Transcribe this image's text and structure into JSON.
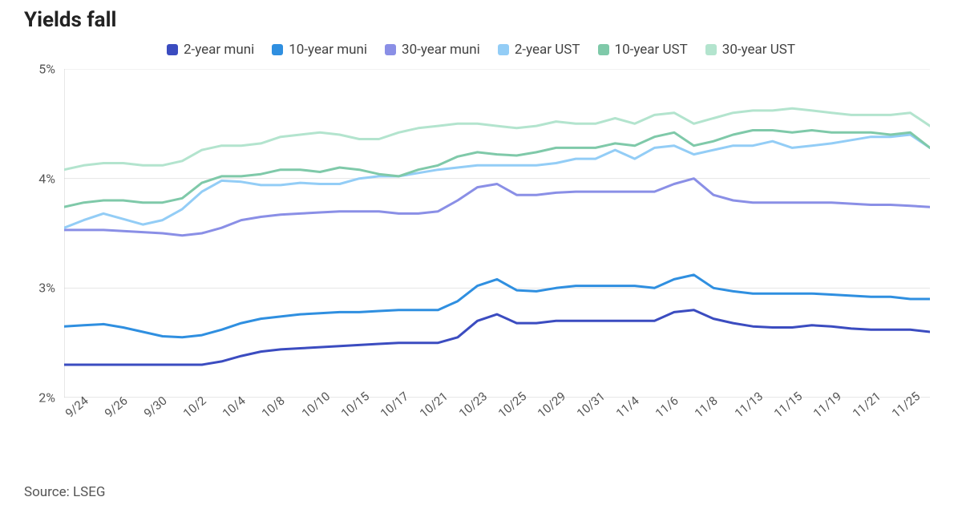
{
  "title": "Yields fall",
  "source": "Source: LSEG",
  "chart": {
    "type": "line",
    "background_color": "#ffffff",
    "grid_color": "#e5e5e5",
    "axis_color": "#cfcfcf",
    "title_fontsize": 26,
    "label_fontsize": 16,
    "line_width": 3,
    "y": {
      "min": 2.0,
      "max": 5.0,
      "ticks": [
        2,
        3,
        4,
        5
      ],
      "tick_labels": [
        "2%",
        "3%",
        "4%",
        "5%"
      ]
    },
    "x": {
      "count": 45,
      "tick_positions": [
        0,
        2,
        4,
        6,
        8,
        10,
        12,
        14,
        16,
        18,
        20,
        22,
        24,
        26,
        28,
        30,
        32,
        34,
        36,
        38,
        40,
        42,
        44
      ],
      "tick_labels": [
        "9/24",
        "9/26",
        "9/30",
        "10/2",
        "10/4",
        "10/8",
        "10/10",
        "10/15",
        "10/17",
        "10/21",
        "10/23",
        "10/25",
        "10/29",
        "10/31",
        "11/4",
        "11/6",
        "11/8",
        "11/13",
        "11/15",
        "11/19",
        "11/21",
        "11/25",
        ""
      ]
    },
    "series": [
      {
        "name": "2-year muni",
        "color": "#3b4cc0",
        "values": [
          2.3,
          2.3,
          2.3,
          2.3,
          2.3,
          2.3,
          2.3,
          2.3,
          2.33,
          2.38,
          2.42,
          2.44,
          2.45,
          2.46,
          2.47,
          2.48,
          2.49,
          2.5,
          2.5,
          2.5,
          2.55,
          2.7,
          2.76,
          2.68,
          2.68,
          2.7,
          2.7,
          2.7,
          2.7,
          2.7,
          2.7,
          2.78,
          2.8,
          2.72,
          2.68,
          2.65,
          2.64,
          2.64,
          2.66,
          2.65,
          2.63,
          2.62,
          2.62,
          2.62,
          2.6
        ]
      },
      {
        "name": "10-year muni",
        "color": "#2f8fe0",
        "values": [
          2.65,
          2.66,
          2.67,
          2.64,
          2.6,
          2.56,
          2.55,
          2.57,
          2.62,
          2.68,
          2.72,
          2.74,
          2.76,
          2.77,
          2.78,
          2.78,
          2.79,
          2.8,
          2.8,
          2.8,
          2.88,
          3.02,
          3.08,
          2.98,
          2.97,
          3.0,
          3.02,
          3.02,
          3.02,
          3.02,
          3.0,
          3.08,
          3.12,
          3.0,
          2.97,
          2.95,
          2.95,
          2.95,
          2.95,
          2.94,
          2.93,
          2.92,
          2.92,
          2.9,
          2.9
        ]
      },
      {
        "name": "30-year muni",
        "color": "#8a8fe6",
        "values": [
          3.53,
          3.53,
          3.53,
          3.52,
          3.51,
          3.5,
          3.48,
          3.5,
          3.55,
          3.62,
          3.65,
          3.67,
          3.68,
          3.69,
          3.7,
          3.7,
          3.7,
          3.68,
          3.68,
          3.7,
          3.8,
          3.92,
          3.95,
          3.85,
          3.85,
          3.87,
          3.88,
          3.88,
          3.88,
          3.88,
          3.88,
          3.95,
          4.0,
          3.85,
          3.8,
          3.78,
          3.78,
          3.78,
          3.78,
          3.78,
          3.77,
          3.76,
          3.76,
          3.75,
          3.74
        ]
      },
      {
        "name": "2-year UST",
        "color": "#93cdf6",
        "values": [
          3.55,
          3.62,
          3.68,
          3.63,
          3.58,
          3.62,
          3.72,
          3.88,
          3.98,
          3.97,
          3.94,
          3.94,
          3.96,
          3.95,
          3.95,
          4.0,
          4.02,
          4.02,
          4.05,
          4.08,
          4.1,
          4.12,
          4.12,
          4.12,
          4.12,
          4.14,
          4.18,
          4.18,
          4.26,
          4.18,
          4.28,
          4.3,
          4.22,
          4.26,
          4.3,
          4.3,
          4.34,
          4.28,
          4.3,
          4.32,
          4.35,
          4.38,
          4.38,
          4.4,
          4.28
        ]
      },
      {
        "name": "10-year UST",
        "color": "#7fc9a9",
        "values": [
          3.74,
          3.78,
          3.8,
          3.8,
          3.78,
          3.78,
          3.82,
          3.96,
          4.02,
          4.02,
          4.04,
          4.08,
          4.08,
          4.06,
          4.1,
          4.08,
          4.04,
          4.02,
          4.08,
          4.12,
          4.2,
          4.24,
          4.22,
          4.21,
          4.24,
          4.28,
          4.28,
          4.28,
          4.32,
          4.3,
          4.38,
          4.42,
          4.3,
          4.34,
          4.4,
          4.44,
          4.44,
          4.42,
          4.44,
          4.42,
          4.42,
          4.42,
          4.4,
          4.42,
          4.28
        ]
      },
      {
        "name": "30-year UST",
        "color": "#b3e4ce",
        "values": [
          4.08,
          4.12,
          4.14,
          4.14,
          4.12,
          4.12,
          4.16,
          4.26,
          4.3,
          4.3,
          4.32,
          4.38,
          4.4,
          4.42,
          4.4,
          4.36,
          4.36,
          4.42,
          4.46,
          4.48,
          4.5,
          4.5,
          4.48,
          4.46,
          4.48,
          4.52,
          4.5,
          4.5,
          4.55,
          4.5,
          4.58,
          4.6,
          4.5,
          4.55,
          4.6,
          4.62,
          4.62,
          4.64,
          4.62,
          4.6,
          4.58,
          4.58,
          4.58,
          4.6,
          4.48
        ]
      }
    ]
  }
}
